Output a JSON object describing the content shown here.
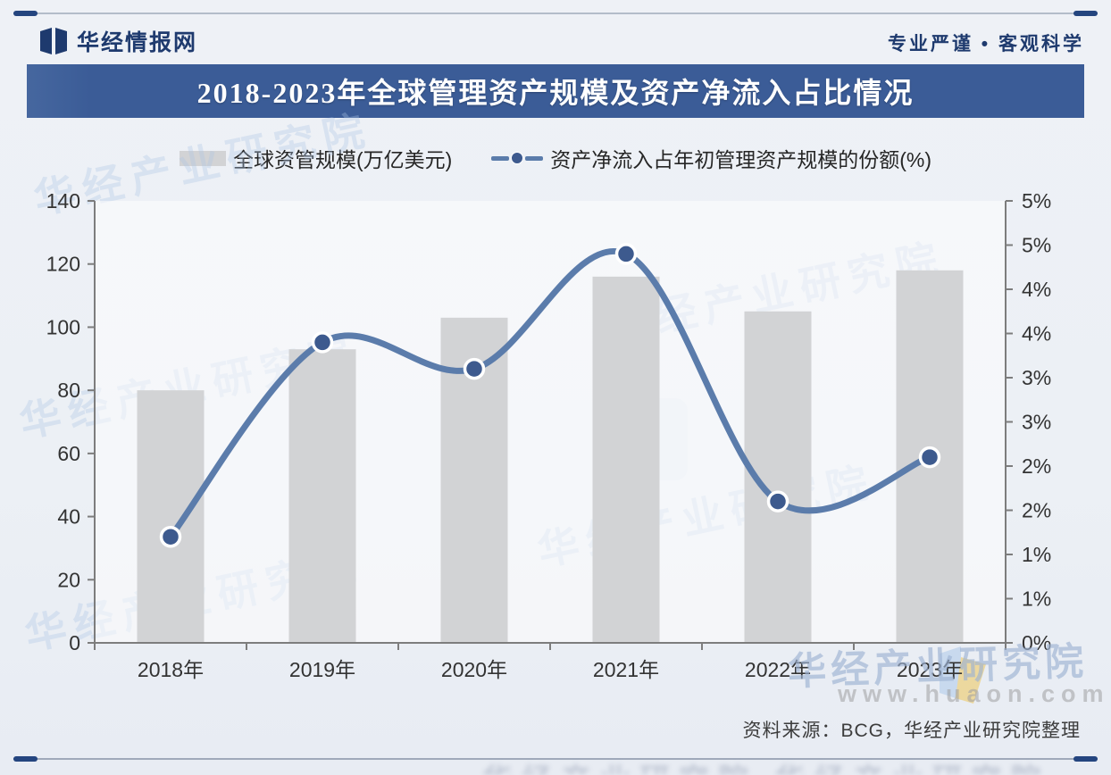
{
  "header": {
    "brand": "华经情报网",
    "slogan": "专业严谨 • 客观科学"
  },
  "title": "2018-2023年全球管理资产规模及资产净流入占比情况",
  "legend": [
    {
      "label": "全球资管规模(万亿美元)",
      "type": "bar",
      "color": "#d2d3d5"
    },
    {
      "label": "资产净流入占年初管理资产规模的份额(%)",
      "type": "line",
      "color": "#5b7cab"
    }
  ],
  "chart_data": {
    "type": "bar",
    "categories": [
      "2018年",
      "2019年",
      "2020年",
      "2021年",
      "2022年",
      "2023年"
    ],
    "series": [
      {
        "name": "全球资管规模(万亿美元)",
        "type": "bar",
        "axis": "left",
        "values": [
          80,
          93,
          103,
          116,
          105,
          118
        ]
      },
      {
        "name": "资产净流入占年初管理资产规模的份额(%)",
        "type": "line",
        "axis": "right",
        "values": [
          1.2,
          3.4,
          3.1,
          4.4,
          1.6,
          2.1
        ]
      }
    ],
    "left_axis": {
      "min": 0,
      "max": 140,
      "step": 20,
      "ticks": [
        "0",
        "20",
        "40",
        "60",
        "80",
        "100",
        "120",
        "140"
      ]
    },
    "right_axis": {
      "min": 0,
      "max": 5,
      "step": 0.5,
      "ticks": [
        "0%",
        "1%",
        "1%",
        "2%",
        "2%",
        "3%",
        "3%",
        "4%",
        "4%",
        "5%",
        "5%"
      ]
    },
    "grid": false,
    "legend_position": "top"
  },
  "footer": {
    "source": "资料来源：BCG，华经产业研究院整理"
  },
  "watermarks": {
    "site_name": "华经产业研究院",
    "site_url": "www.huaon.com"
  },
  "colors": {
    "banner": "#3b5c97",
    "brand_navy": "#1e3a6e",
    "bar": "#d2d3d5",
    "line": "#5b7cab",
    "dot": "#3d5a8e",
    "axis": "#7d7d7d",
    "axis_label": "#333333"
  }
}
